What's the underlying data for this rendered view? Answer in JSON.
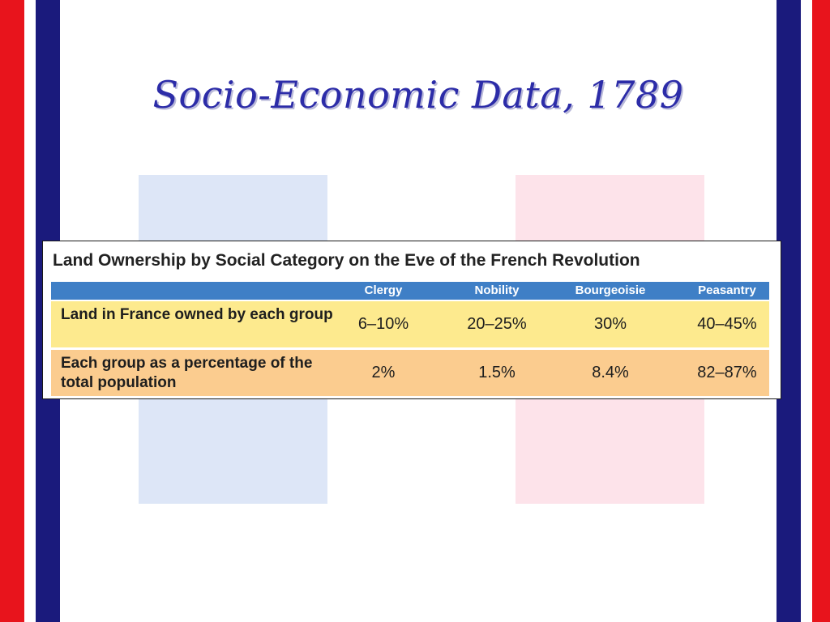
{
  "slide": {
    "title": "Socio-Economic Data, 1789"
  },
  "table": {
    "title": "Land Ownership by Social Category on the Eve of the French Revolution",
    "columns": [
      "Clergy",
      "Nobility",
      "Bourgeoisie",
      "Peasantry"
    ],
    "rows": [
      {
        "label": "Land in France owned by each group",
        "values": [
          "6–10%",
          "20–25%",
          "30%",
          "40–45%"
        ]
      },
      {
        "label": "Each group as a percentage of the total population",
        "values": [
          "2%",
          "1.5%",
          "8.4%",
          "82–87%"
        ]
      }
    ]
  },
  "colors": {
    "flag_red": "#e8141c",
    "flag_navy": "#1a1a7c",
    "title_blue": "#2c2ca8",
    "header_blue": "#3f7fc6",
    "row1_yellow": "#fdea8e",
    "row2_orange": "#fbcc8f"
  }
}
